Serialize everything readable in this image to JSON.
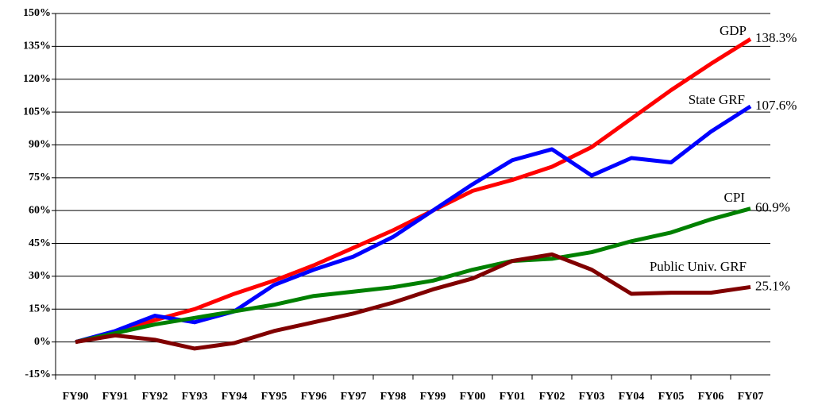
{
  "chart_data": {
    "type": "line",
    "categories": [
      "FY90",
      "FY91",
      "FY92",
      "FY93",
      "FY94",
      "FY95",
      "FY96",
      "FY97",
      "FY98",
      "FY99",
      "FY00",
      "FY01",
      "FY02",
      "FY03",
      "FY04",
      "FY05",
      "FY06",
      "FY07"
    ],
    "series": [
      {
        "name": "GDP",
        "color": "#ff0000",
        "values": [
          0,
          4,
          10,
          15,
          22,
          28,
          35,
          43,
          51,
          60,
          69,
          74,
          80,
          89,
          102,
          115,
          127,
          138.3
        ],
        "value_labels": [
          null,
          null,
          null,
          null,
          null,
          null,
          null,
          null,
          null,
          null,
          null,
          null,
          null,
          null,
          null,
          null,
          null,
          "138.3%"
        ]
      },
      {
        "name": "State GRF",
        "color": "#0000ff",
        "values": [
          0,
          5,
          12,
          9,
          14,
          26,
          33,
          39,
          48,
          60,
          72,
          83,
          88,
          76,
          84,
          82,
          96,
          107.6
        ],
        "value_labels": [
          null,
          null,
          null,
          null,
          null,
          null,
          null,
          null,
          null,
          null,
          null,
          null,
          null,
          null,
          null,
          null,
          null,
          "107.6%"
        ]
      },
      {
        "name": "CPI",
        "color": "#008000",
        "values": [
          0,
          4,
          8,
          11,
          14,
          17,
          21,
          23,
          25,
          28,
          33,
          37,
          38,
          41,
          46,
          50,
          56,
          60.9
        ],
        "value_labels": [
          null,
          null,
          null,
          null,
          null,
          null,
          null,
          null,
          null,
          null,
          null,
          null,
          null,
          null,
          null,
          null,
          null,
          "60.9%"
        ]
      },
      {
        "name": "Public Univ. GRF",
        "color": "#800000",
        "values": [
          0,
          3,
          1,
          -3,
          -0.5,
          5,
          9,
          13,
          18,
          24,
          29,
          37,
          40,
          33,
          22,
          22.5,
          22.5,
          25.1
        ],
        "value_labels": [
          null,
          null,
          null,
          null,
          null,
          null,
          null,
          null,
          null,
          null,
          null,
          null,
          null,
          null,
          null,
          null,
          null,
          "25.1%"
        ]
      }
    ],
    "ylim": [
      -15,
      150
    ],
    "yticks": [
      {
        "value": -15,
        "label": "-15%"
      },
      {
        "value": 0,
        "label": "0%"
      },
      {
        "value": 15,
        "label": "15%"
      },
      {
        "value": 30,
        "label": "30%"
      },
      {
        "value": 45,
        "label": "45%"
      },
      {
        "value": 60,
        "label": "60%"
      },
      {
        "value": 75,
        "label": "75%"
      },
      {
        "value": 90,
        "label": "90%"
      },
      {
        "value": 105,
        "label": "105%"
      },
      {
        "value": 120,
        "label": "120%"
      },
      {
        "value": 135,
        "label": "135%"
      },
      {
        "value": 150,
        "label": "150%"
      }
    ],
    "grid": true
  }
}
